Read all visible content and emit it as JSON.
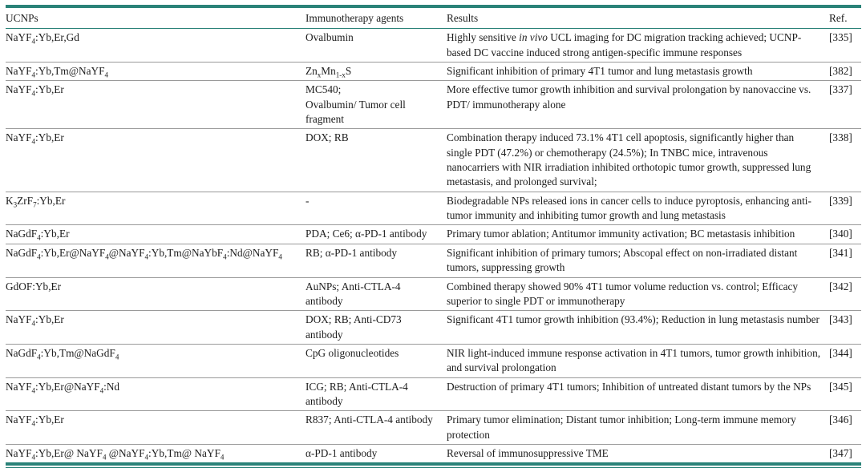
{
  "colors": {
    "accent_teal": "#2a8278",
    "row_rule_gray": "#9a9a9a",
    "text_ink": "#1c1c1c"
  },
  "table": {
    "columns": [
      {
        "label": "UCNPs"
      },
      {
        "label": "Immunotherapy agents"
      },
      {
        "label": "Results"
      },
      {
        "label": "Ref."
      }
    ],
    "rows": [
      {
        "ucnp": [
          {
            "t": "NaYF"
          },
          {
            "t": "4",
            "sub": true
          },
          {
            "t": ":Yb,Er,Gd"
          }
        ],
        "agents": "Ovalbumin",
        "results": [
          {
            "t": "Highly sensitive "
          },
          {
            "t": "in vivo",
            "italic": true
          },
          {
            "t": " UCL imaging for DC migration tracking achieved; UCNP-based DC vaccine induced strong antigen-specific immune responses"
          }
        ],
        "ref": "[335]"
      },
      {
        "ucnp": [
          {
            "t": "NaYF"
          },
          {
            "t": "4",
            "sub": true
          },
          {
            "t": ":Yb,Tm@NaYF"
          },
          {
            "t": "4",
            "sub": true
          }
        ],
        "agents": [
          {
            "t": "Zn"
          },
          {
            "t": "x",
            "sub": true
          },
          {
            "t": "Mn"
          },
          {
            "t": "1-x",
            "sub": true
          },
          {
            "t": "S"
          }
        ],
        "results": "Significant inhibition of primary 4T1 tumor and lung metastasis growth",
        "ref": "[382]"
      },
      {
        "ucnp": [
          {
            "t": "NaYF"
          },
          {
            "t": "4",
            "sub": true
          },
          {
            "t": ":Yb,Er"
          }
        ],
        "agents": "MC540;\nOvalbumin/ Tumor cell fragment",
        "results": "More effective tumor growth inhibition and survival prolongation by nanovaccine vs. PDT/ immunotherapy alone",
        "ref": "[337]"
      },
      {
        "ucnp": [
          {
            "t": "NaYF"
          },
          {
            "t": "4",
            "sub": true
          },
          {
            "t": ":Yb,Er"
          }
        ],
        "agents": "DOX; RB",
        "results": "Combination therapy induced 73.1% 4T1 cell apoptosis, significantly higher than single PDT (47.2%) or chemotherapy (24.5%); In TNBC mice, intravenous nanocarriers with NIR irradiation inhibited orthotopic tumor growth, suppressed lung metastasis, and prolonged survival;",
        "ref": "[338]"
      },
      {
        "ucnp": [
          {
            "t": "K"
          },
          {
            "t": "3",
            "sub": true
          },
          {
            "t": "ZrF"
          },
          {
            "t": "7",
            "sub": true
          },
          {
            "t": ":Yb,Er"
          }
        ],
        "agents": "-",
        "results": "Biodegradable NPs released ions in cancer cells to induce pyroptosis, enhancing anti-tumor immunity and inhibiting tumor growth and lung metastasis",
        "ref": "[339]"
      },
      {
        "ucnp": [
          {
            "t": "NaGdF"
          },
          {
            "t": "4",
            "sub": true
          },
          {
            "t": ":Yb,Er"
          }
        ],
        "agents": "PDA; Ce6; α-PD-1 antibody",
        "results": "Primary tumor ablation; Antitumor immunity activation; BC metastasis inhibition",
        "ref": "[340]"
      },
      {
        "ucnp": [
          {
            "t": "NaGdF"
          },
          {
            "t": "4",
            "sub": true
          },
          {
            "t": ":Yb,Er@NaYF"
          },
          {
            "t": "4",
            "sub": true
          },
          {
            "t": "@NaYF"
          },
          {
            "t": "4",
            "sub": true
          },
          {
            "t": ":Yb,Tm@NaYbF"
          },
          {
            "t": "4",
            "sub": true
          },
          {
            "t": ":Nd@NaYF"
          },
          {
            "t": "4",
            "sub": true
          }
        ],
        "agents": "RB; α-PD-1 antibody",
        "results": "Significant inhibition of primary tumors; Abscopal effect on non-irradiated distant tumors, suppressing growth",
        "ref": "[341]"
      },
      {
        "ucnp": "GdOF:Yb,Er",
        "agents": "AuNPs; Anti-CTLA-4 antibody",
        "results": "Combined therapy showed 90% 4T1 tumor volume reduction vs. control; Efficacy superior to single PDT or immunotherapy",
        "ref": "[342]"
      },
      {
        "ucnp": [
          {
            "t": "NaYF"
          },
          {
            "t": "4",
            "sub": true
          },
          {
            "t": ":Yb,Er"
          }
        ],
        "agents": "DOX; RB; Anti-CD73 antibody",
        "results": "Significant 4T1 tumor growth inhibition (93.4%); Reduction in lung metastasis number",
        "ref": "[343]"
      },
      {
        "ucnp": [
          {
            "t": "NaGdF"
          },
          {
            "t": "4",
            "sub": true
          },
          {
            "t": ":Yb,Tm@NaGdF"
          },
          {
            "t": "4",
            "sub": true
          }
        ],
        "agents": "CpG oligonucleotides",
        "results": "NIR light-induced immune response activation in 4T1 tumors, tumor growth inhibition, and survival prolongation",
        "ref": "[344]"
      },
      {
        "ucnp": [
          {
            "t": "NaYF"
          },
          {
            "t": "4",
            "sub": true
          },
          {
            "t": ":Yb,Er@NaYF"
          },
          {
            "t": "4",
            "sub": true
          },
          {
            "t": ":Nd"
          }
        ],
        "agents": "ICG; RB; Anti-CTLA-4 antibody",
        "results": "Destruction of primary 4T1 tumors; Inhibition of untreated distant tumors by the NPs",
        "ref": "[345]"
      },
      {
        "ucnp": [
          {
            "t": "NaYF"
          },
          {
            "t": "4",
            "sub": true
          },
          {
            "t": ":Yb,Er"
          }
        ],
        "agents": "R837; Anti-CTLA-4 antibody",
        "results": "Primary tumor elimination; Distant tumor inhibition; Long-term immune memory protection",
        "ref": "[346]"
      },
      {
        "ucnp": [
          {
            "t": "NaYF"
          },
          {
            "t": "4",
            "sub": true
          },
          {
            "t": ":Yb,Er@ NaYF"
          },
          {
            "t": "4",
            "sub": true
          },
          {
            "t": " @NaYF"
          },
          {
            "t": "4",
            "sub": true
          },
          {
            "t": ":Yb,Tm@ NaYF"
          },
          {
            "t": "4",
            "sub": true
          }
        ],
        "agents": "α-PD-1 antibody",
        "results": "Reversal of immunosuppressive TME",
        "ref": "[347]"
      }
    ]
  }
}
